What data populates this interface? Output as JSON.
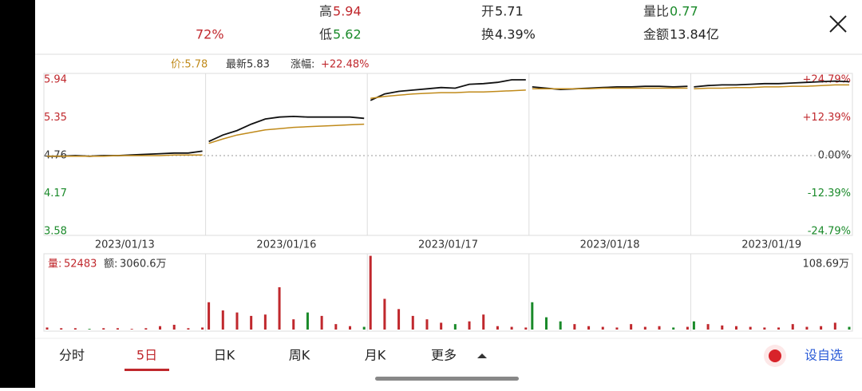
{
  "header": {
    "fields": [
      {
        "label": "高",
        "value": "5.94",
        "color": "#c0282d"
      },
      {
        "label": "开",
        "value": "5.71",
        "color": "#222"
      },
      {
        "label": "量比",
        "value": "0.77",
        "color": "#1a8a2a"
      },
      {
        "label": "低",
        "value": "5.62",
        "color": "#1a8a2a"
      },
      {
        "label": "换",
        "value": "4.39%",
        "color": "#222"
      },
      {
        "label": "金额",
        "value": "13.84亿",
        "color": "#222"
      }
    ],
    "partial": "72%"
  },
  "legend": {
    "avg": "价:5.78",
    "latest": "最新5.83",
    "change_label": "涨幅:",
    "change": "+22.48%"
  },
  "chart_data": {
    "type": "line",
    "days": [
      "2023/01/13",
      "2023/01/16",
      "2023/01/17",
      "2023/01/18",
      "2023/01/19"
    ],
    "ylim": [
      3.58,
      5.94
    ],
    "yticks": [
      5.94,
      5.35,
      4.76,
      4.17,
      3.58
    ],
    "y2ticks": [
      "+24.79%",
      "+12.39%",
      "0.00%",
      "-12.39%",
      "-24.79%"
    ],
    "series": [
      {
        "name": "价格",
        "color": "#111",
        "values": [
          4.75,
          4.75,
          4.76,
          4.75,
          4.76,
          4.76,
          4.77,
          4.78,
          4.79,
          4.8,
          4.8,
          4.83,
          4.98,
          5.08,
          5.15,
          5.25,
          5.33,
          5.36,
          5.37,
          5.36,
          5.36,
          5.36,
          5.36,
          5.34,
          5.62,
          5.72,
          5.76,
          5.78,
          5.8,
          5.82,
          5.81,
          5.87,
          5.88,
          5.9,
          5.94,
          5.94,
          5.83,
          5.81,
          5.79,
          5.8,
          5.81,
          5.82,
          5.83,
          5.83,
          5.84,
          5.84,
          5.83,
          5.84,
          5.83,
          5.85,
          5.86,
          5.86,
          5.87,
          5.88,
          5.88,
          5.89,
          5.9,
          5.91,
          5.92,
          5.91
        ]
      },
      {
        "name": "均价",
        "color": "#c08a1a",
        "values": [
          4.75,
          4.75,
          4.75,
          4.75,
          4.75,
          4.76,
          4.76,
          4.76,
          4.76,
          4.77,
          4.77,
          4.77,
          4.95,
          5.02,
          5.08,
          5.12,
          5.16,
          5.18,
          5.2,
          5.21,
          5.22,
          5.23,
          5.24,
          5.25,
          5.65,
          5.68,
          5.7,
          5.72,
          5.73,
          5.74,
          5.74,
          5.75,
          5.75,
          5.76,
          5.77,
          5.78,
          5.8,
          5.8,
          5.8,
          5.8,
          5.8,
          5.81,
          5.81,
          5.81,
          5.81,
          5.81,
          5.81,
          5.81,
          5.8,
          5.81,
          5.81,
          5.82,
          5.82,
          5.83,
          5.83,
          5.84,
          5.84,
          5.85,
          5.86,
          5.86
        ]
      }
    ],
    "volume": {
      "label": "量:",
      "value": "52483",
      "amount_label": "额:",
      "amount": "3060.6万",
      "max_label": "108.69万",
      "ylim": [
        0,
        108.69
      ],
      "values": [
        3,
        2,
        2,
        1,
        2,
        2,
        1,
        2,
        5,
        7,
        2,
        3,
        40,
        28,
        25,
        20,
        22,
        62,
        15,
        25,
        20,
        8,
        5,
        4,
        108,
        45,
        30,
        20,
        15,
        10,
        8,
        12,
        22,
        5,
        4,
        3,
        40,
        18,
        12,
        8,
        5,
        4,
        3,
        8,
        4,
        5,
        3,
        4,
        12,
        8,
        6,
        5,
        4,
        3,
        3,
        8,
        4,
        5,
        10,
        4
      ]
    }
  },
  "tabs": {
    "items": [
      "分时",
      "5日",
      "日K",
      "周K",
      "月K",
      "更多"
    ],
    "selected": 1,
    "add": "设自选"
  }
}
